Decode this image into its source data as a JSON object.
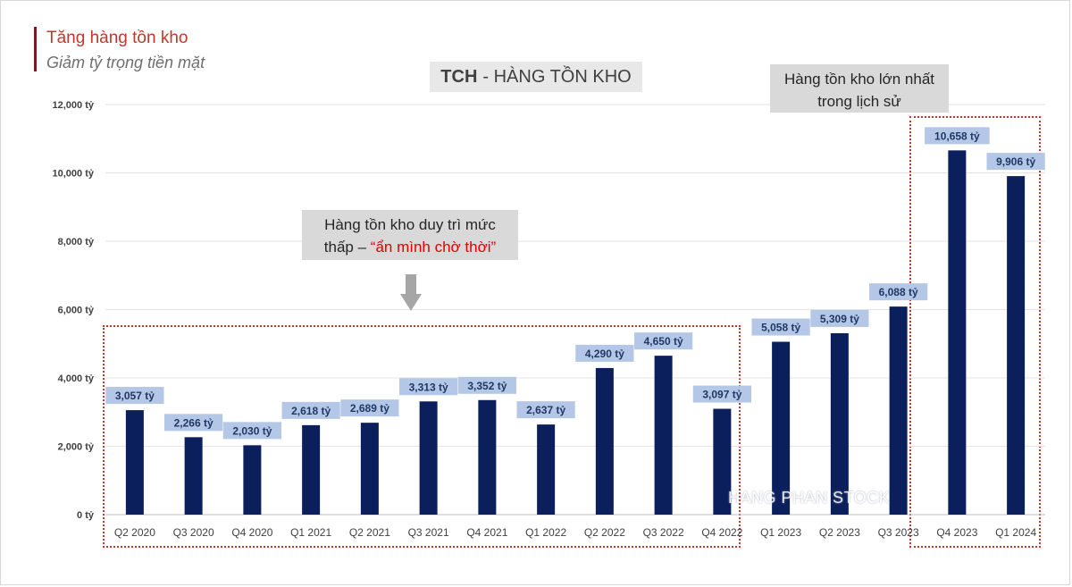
{
  "header": {
    "title": "Tăng hàng tồn kho",
    "subtitle": "Giảm tỷ trọng tiền mặt"
  },
  "annotations": {
    "top_line1": "Hàng tồn kho lớn nhất",
    "top_line2": "trong lịch sử",
    "mid_line1": "Hàng tồn kho duy trì mức",
    "mid_line2_prefix": "thấp – ",
    "mid_line2_highlight": "“ẩn mình chờ thời”"
  },
  "watermark": "HANG PHAN STOCK",
  "colors": {
    "bar": "#0b1f5c",
    "label_bg": "#b4c7e7",
    "highlight_red": "#e00000",
    "dashed_box": "#d32f2f"
  },
  "chart_data": {
    "type": "bar",
    "title_bold": "TCH",
    "title_rest": "- HÀNG TỒN KHO",
    "categories": [
      "Q2 2020",
      "Q3 2020",
      "Q4 2020",
      "Q1 2021",
      "Q2 2021",
      "Q3 2021",
      "Q4 2021",
      "Q1 2022",
      "Q2 2022",
      "Q3 2022",
      "Q4 2022",
      "Q1 2023",
      "Q2 2023",
      "Q3 2023",
      "Q4 2023",
      "Q1 2024"
    ],
    "values": [
      3057,
      2266,
      2030,
      2618,
      2689,
      3313,
      3352,
      2637,
      4290,
      4650,
      3097,
      5058,
      5309,
      6088,
      10658,
      9906
    ],
    "value_labels": [
      "3,057 tỷ",
      "2,266 tỷ",
      "2,030 tỷ",
      "2,618 tỷ",
      "2,689 tỷ",
      "3,313 tỷ",
      "3,352 tỷ",
      "2,637 tỷ",
      "4,290 tỷ",
      "4,650 tỷ",
      "3,097 tỷ",
      "5,058 tỷ",
      "5,309 tỷ",
      "6,088 tỷ",
      "10,658 tỷ",
      "9,906 tỷ"
    ],
    "ylim": [
      0,
      12000
    ],
    "yticks": [
      0,
      2000,
      4000,
      6000,
      8000,
      10000,
      12000
    ],
    "ytick_labels": [
      "0 tỷ",
      "2,000 tỷ",
      "4,000 tỷ",
      "6,000 tỷ",
      "8,000 tỷ",
      "10,000 tỷ",
      "12,000 tỷ"
    ],
    "grid": true,
    "legend": "none"
  }
}
